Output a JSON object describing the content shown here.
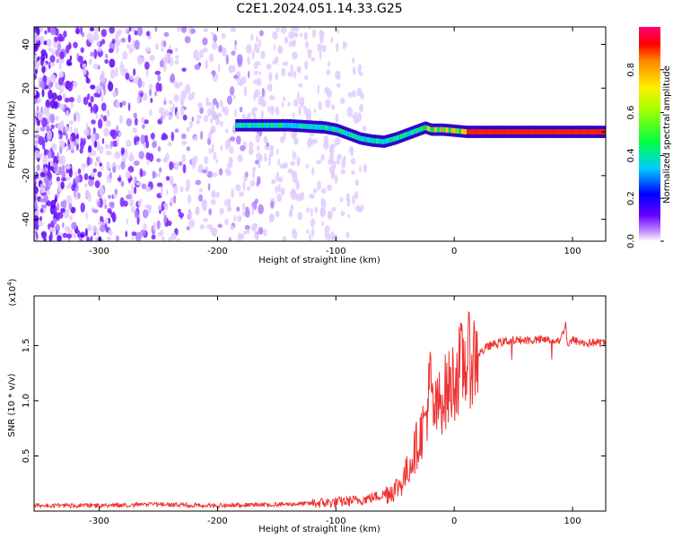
{
  "figure_title": "C2E1.2024.051.14.33.G25",
  "colors": {
    "snr_line": "#ee3333",
    "axis": "#000000"
  },
  "chart_data": [
    {
      "type": "heatmap",
      "title": "C2E1.2024.051.14.33.G25",
      "xlabel": "Height of straight line (km)",
      "ylabel": "Frequency (Hz)",
      "xlim": [
        -355,
        128
      ],
      "ylim": [
        -50,
        48
      ],
      "xticks": [
        -300,
        -200,
        -100,
        0,
        100
      ],
      "yticks": [
        -40,
        -20,
        0,
        20,
        40
      ],
      "colorbar": {
        "label": "Normalized spectral amplitude",
        "range": [
          0,
          1
        ],
        "ticks": [
          0.0,
          0.2,
          0.4,
          0.6,
          0.8
        ],
        "tick_labels": [
          "0.0",
          "0.2",
          "0.4",
          "0.6",
          "0.8"
        ],
        "colormap": [
          "#ffffff",
          "#6600ff",
          "#0000ff",
          "#00ffff",
          "#00ff00",
          "#ffff00",
          "#ff8800",
          "#ff0000",
          "#ff0088"
        ]
      },
      "ridge": {
        "x": [
          -185,
          -165,
          -150,
          -140,
          -125,
          -110,
          -100,
          -90,
          -80,
          -70,
          -60,
          -50,
          -45,
          -40,
          -35,
          -30,
          -25,
          -20,
          -10,
          0,
          10,
          30,
          60,
          90,
          128
        ],
        "y": [
          3,
          3,
          3,
          3,
          2.5,
          2,
          1,
          -1,
          -3,
          -4,
          -4.5,
          -3,
          -2,
          -1,
          0,
          1,
          2,
          1,
          1,
          0.5,
          0,
          0,
          0,
          0,
          0
        ]
      }
    },
    {
      "type": "line",
      "xlabel": "Height of straight line (km)",
      "ylabel": "SNR (10 * v/v)",
      "y_multiplier": "(x10",
      "y_multiplier_exp": "4",
      "y_multiplier_close": ")",
      "xlim": [
        -355,
        128
      ],
      "ylim": [
        0,
        1.95
      ],
      "xticks": [
        -300,
        -200,
        -100,
        0,
        100
      ],
      "yticks": [
        0.5,
        1.0,
        1.5
      ],
      "ytick_labels": [
        "0.5",
        "1.0",
        "1.5"
      ],
      "series": [
        {
          "color": "#ee3333",
          "x": [
            -355,
            -300,
            -250,
            -200,
            -150,
            -120,
            -100,
            -80,
            -70,
            -60,
            -50,
            -45,
            -40,
            -35,
            -30,
            -25,
            -22,
            -20,
            -18,
            -15,
            -10,
            -5,
            0,
            5,
            10,
            15,
            20,
            25,
            30,
            40,
            50,
            60,
            70,
            80,
            90,
            94,
            96,
            100,
            110,
            120,
            128
          ],
          "y": [
            0.05,
            0.05,
            0.06,
            0.05,
            0.06,
            0.07,
            0.08,
            0.1,
            0.12,
            0.15,
            0.2,
            0.25,
            0.35,
            0.5,
            0.65,
            0.8,
            1.0,
            1.2,
            0.9,
            0.9,
            1.05,
            1.1,
            1.2,
            1.3,
            1.35,
            1.38,
            1.42,
            1.46,
            1.5,
            1.53,
            1.55,
            1.55,
            1.55,
            1.55,
            1.55,
            1.7,
            1.5,
            1.55,
            1.52,
            1.53,
            1.52
          ]
        }
      ]
    }
  ]
}
